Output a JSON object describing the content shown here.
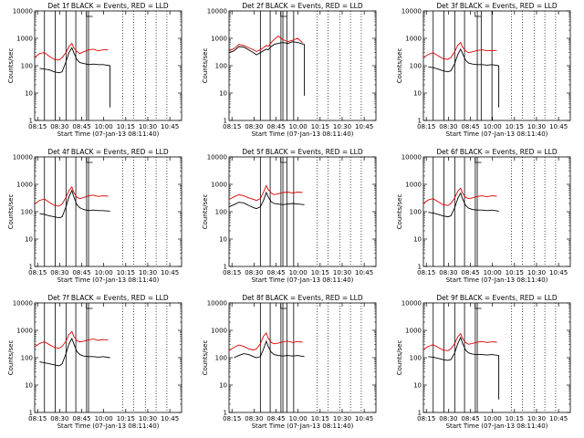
{
  "figure": {
    "xlabel": "Start Time (07-Jan-13 08:11:40)",
    "ylabel": "Counts/sec",
    "xtick_labels": [
      "08:15",
      "08:30",
      "08:45",
      "10:00",
      "10:15",
      "10:30",
      "10:45"
    ],
    "ytick_labels": [
      "1",
      "10",
      "100",
      "1000",
      "10000"
    ],
    "series_colors": {
      "events": "#000000",
      "lld": "#dd0000"
    }
  },
  "chart_data": [
    {
      "type": "line",
      "title": "Det 1f BLACK = Events, RED = LLD",
      "xlim": [
        0,
        150
      ],
      "ylim": [
        1,
        10000
      ],
      "yscale": "log",
      "solid_vlines": [
        10,
        21,
        32,
        42,
        53,
        55
      ],
      "dotted_vlines": [
        90,
        101,
        113,
        124,
        135
      ],
      "series": [
        {
          "name": "Events",
          "color": "#000000",
          "start": 5,
          "end": 77,
          "drop_to": 3,
          "x": [
            5,
            10,
            15,
            20,
            25,
            28,
            32,
            35,
            38,
            40,
            43,
            46,
            50,
            55,
            60,
            65,
            70,
            77
          ],
          "y": [
            80,
            75,
            70,
            60,
            55,
            60,
            140,
            300,
            450,
            300,
            170,
            130,
            120,
            110,
            115,
            110,
            110,
            100
          ]
        },
        {
          "name": "LLD",
          "color": "#dd0000",
          "start": 0,
          "end": 75,
          "x": [
            0,
            5,
            10,
            15,
            20,
            25,
            28,
            32,
            35,
            38,
            40,
            43,
            46,
            50,
            55,
            60,
            65,
            70,
            75
          ],
          "y": [
            200,
            280,
            300,
            220,
            170,
            160,
            200,
            300,
            500,
            650,
            450,
            330,
            280,
            320,
            380,
            400,
            350,
            380,
            380
          ]
        }
      ]
    },
    {
      "type": "line",
      "title": "Det 2f BLACK = Events, RED = LLD",
      "xlim": [
        0,
        150
      ],
      "ylim": [
        1,
        10000
      ],
      "yscale": "log",
      "solid_vlines": [
        32,
        42,
        53,
        55,
        59,
        66
      ],
      "dotted_vlines": [
        90,
        101,
        113,
        124,
        135
      ],
      "series": [
        {
          "name": "Events",
          "color": "#000000",
          "start": 0,
          "end": 77,
          "drop_to": 8,
          "x": [
            0,
            5,
            10,
            15,
            20,
            25,
            28,
            32,
            35,
            38,
            40,
            43,
            46,
            50,
            55,
            60,
            65,
            70,
            77
          ],
          "y": [
            300,
            350,
            500,
            480,
            380,
            300,
            250,
            300,
            350,
            400,
            380,
            500,
            600,
            650,
            700,
            650,
            750,
            700,
            600
          ]
        },
        {
          "name": "LLD",
          "color": "#dd0000",
          "start": 0,
          "end": 75,
          "x": [
            0,
            5,
            10,
            15,
            20,
            25,
            28,
            32,
            35,
            38,
            40,
            43,
            46,
            50,
            55,
            60,
            65,
            70,
            75
          ],
          "y": [
            350,
            420,
            600,
            550,
            450,
            380,
            330,
            380,
            450,
            550,
            500,
            700,
            900,
            1200,
            900,
            750,
            850,
            1000,
            700
          ]
        }
      ]
    },
    {
      "type": "line",
      "title": "Det 3f BLACK = Events, RED = LLD",
      "xlim": [
        0,
        150
      ],
      "ylim": [
        1,
        10000
      ],
      "yscale": "log",
      "solid_vlines": [
        10,
        21,
        32,
        42,
        55,
        59,
        70
      ],
      "dotted_vlines": [
        90,
        101,
        113,
        124,
        135
      ],
      "series": [
        {
          "name": "Events",
          "color": "#000000",
          "start": 5,
          "end": 77,
          "drop_to": 3,
          "x": [
            5,
            10,
            15,
            20,
            25,
            28,
            32,
            35,
            38,
            40,
            43,
            46,
            50,
            55,
            60,
            65,
            70,
            77
          ],
          "y": [
            90,
            85,
            75,
            65,
            60,
            65,
            120,
            250,
            400,
            280,
            160,
            125,
            115,
            110,
            110,
            105,
            110,
            100
          ]
        },
        {
          "name": "LLD",
          "color": "#dd0000",
          "start": 0,
          "end": 75,
          "x": [
            0,
            5,
            10,
            15,
            20,
            25,
            28,
            32,
            35,
            38,
            40,
            43,
            46,
            50,
            55,
            60,
            65,
            70,
            75
          ],
          "y": [
            200,
            260,
            300,
            230,
            180,
            170,
            200,
            320,
            550,
            700,
            480,
            350,
            300,
            320,
            360,
            380,
            350,
            360,
            360
          ]
        }
      ]
    },
    {
      "type": "line",
      "title": "Det 4f BLACK = Events, RED = LLD",
      "xlim": [
        0,
        150
      ],
      "ylim": [
        1,
        10000
      ],
      "yscale": "log",
      "solid_vlines": [
        10,
        21,
        32,
        42,
        53,
        55
      ],
      "dotted_vlines": [
        90,
        101,
        113,
        124,
        135
      ],
      "series": [
        {
          "name": "Events",
          "color": "#000000",
          "start": 5,
          "end": 77,
          "x": [
            5,
            10,
            15,
            20,
            25,
            28,
            32,
            35,
            38,
            40,
            43,
            46,
            50,
            55,
            60,
            65,
            70,
            77
          ],
          "y": [
            85,
            80,
            70,
            65,
            60,
            65,
            150,
            350,
            600,
            350,
            180,
            140,
            120,
            110,
            115,
            110,
            110,
            105
          ]
        },
        {
          "name": "LLD",
          "color": "#dd0000",
          "start": 0,
          "end": 75,
          "x": [
            0,
            5,
            10,
            15,
            20,
            25,
            28,
            32,
            35,
            38,
            40,
            43,
            46,
            50,
            55,
            60,
            65,
            70,
            75
          ],
          "y": [
            190,
            260,
            290,
            220,
            170,
            160,
            190,
            330,
            600,
            800,
            500,
            340,
            300,
            330,
            380,
            400,
            360,
            380,
            370
          ]
        }
      ]
    },
    {
      "type": "line",
      "title": "Det 5f BLACK = Events, RED = LLD",
      "xlim": [
        0,
        150
      ],
      "ylim": [
        1,
        10000
      ],
      "yscale": "log",
      "solid_vlines": [
        32,
        42,
        53,
        55,
        59,
        66
      ],
      "dotted_vlines": [
        90,
        101,
        113,
        124,
        135
      ],
      "series": [
        {
          "name": "Events",
          "color": "#000000",
          "start": 0,
          "end": 77,
          "x": [
            0,
            5,
            10,
            15,
            20,
            25,
            28,
            32,
            35,
            38,
            40,
            43,
            46,
            50,
            55,
            60,
            65,
            70,
            77
          ],
          "y": [
            150,
            180,
            220,
            210,
            170,
            140,
            130,
            150,
            250,
            500,
            350,
            230,
            200,
            190,
            180,
            190,
            200,
            190,
            180
          ]
        },
        {
          "name": "LLD",
          "color": "#dd0000",
          "start": 0,
          "end": 75,
          "x": [
            0,
            5,
            10,
            15,
            20,
            25,
            28,
            32,
            35,
            38,
            40,
            43,
            46,
            50,
            55,
            60,
            65,
            70,
            75
          ],
          "y": [
            280,
            350,
            420,
            380,
            320,
            280,
            260,
            300,
            500,
            900,
            650,
            480,
            420,
            450,
            500,
            520,
            480,
            520,
            500
          ]
        }
      ]
    },
    {
      "type": "line",
      "title": "Det 6f BLACK = Events, RED = LLD",
      "xlim": [
        0,
        150
      ],
      "ylim": [
        1,
        10000
      ],
      "yscale": "log",
      "solid_vlines": [
        10,
        21,
        32,
        42,
        53,
        55
      ],
      "dotted_vlines": [
        90,
        101,
        113,
        124,
        135
      ],
      "series": [
        {
          "name": "Events",
          "color": "#000000",
          "start": 5,
          "end": 77,
          "x": [
            5,
            10,
            15,
            20,
            25,
            28,
            32,
            35,
            38,
            40,
            43,
            46,
            50,
            55,
            60,
            65,
            70,
            77
          ],
          "y": [
            95,
            90,
            80,
            70,
            65,
            70,
            140,
            300,
            480,
            300,
            170,
            135,
            120,
            115,
            115,
            110,
            115,
            105
          ]
        },
        {
          "name": "LLD",
          "color": "#dd0000",
          "start": 0,
          "end": 75,
          "x": [
            0,
            5,
            10,
            15,
            20,
            25,
            28,
            32,
            35,
            38,
            40,
            43,
            46,
            50,
            55,
            60,
            65,
            70,
            75
          ],
          "y": [
            200,
            270,
            300,
            230,
            180,
            170,
            200,
            320,
            560,
            720,
            480,
            340,
            300,
            320,
            360,
            380,
            350,
            380,
            370
          ]
        }
      ]
    },
    {
      "type": "line",
      "title": "Det 7f BLACK = Events, RED = LLD",
      "xlim": [
        0,
        150
      ],
      "ylim": [
        1,
        10000
      ],
      "yscale": "log",
      "solid_vlines": [
        10,
        21,
        32,
        42,
        53,
        55
      ],
      "dotted_vlines": [
        90,
        101,
        113,
        124,
        135
      ],
      "series": [
        {
          "name": "Events",
          "color": "#000000",
          "start": 5,
          "end": 77,
          "x": [
            5,
            10,
            15,
            20,
            25,
            28,
            32,
            35,
            38,
            40,
            43,
            46,
            50,
            55,
            60,
            65,
            70,
            77
          ],
          "y": [
            70,
            65,
            60,
            55,
            50,
            60,
            140,
            320,
            500,
            320,
            170,
            130,
            115,
            110,
            110,
            105,
            110,
            100
          ]
        },
        {
          "name": "LLD",
          "color": "#dd0000",
          "start": 0,
          "end": 75,
          "x": [
            0,
            5,
            10,
            15,
            20,
            25,
            28,
            32,
            35,
            38,
            40,
            43,
            46,
            50,
            55,
            60,
            65,
            70,
            75
          ],
          "y": [
            250,
            330,
            380,
            300,
            240,
            220,
            260,
            400,
            700,
            900,
            600,
            420,
            380,
            400,
            450,
            480,
            430,
            460,
            440
          ]
        }
      ]
    },
    {
      "type": "line",
      "title": "Det 8f BLACK = Events, RED = LLD",
      "xlim": [
        0,
        150
      ],
      "ylim": [
        1,
        10000
      ],
      "yscale": "log",
      "solid_vlines": [
        32,
        42,
        53,
        55,
        59,
        66
      ],
      "dotted_vlines": [
        90,
        101,
        113,
        124,
        135
      ],
      "series": [
        {
          "name": "Events",
          "color": "#000000",
          "start": 5,
          "end": 77,
          "x": [
            5,
            10,
            15,
            20,
            25,
            28,
            32,
            35,
            38,
            40,
            43,
            46,
            50,
            55,
            60,
            65,
            70,
            77
          ],
          "y": [
            100,
            120,
            140,
            130,
            110,
            100,
            110,
            200,
            400,
            260,
            160,
            130,
            120,
            115,
            120,
            115,
            120,
            110
          ]
        },
        {
          "name": "LLD",
          "color": "#dd0000",
          "start": 0,
          "end": 75,
          "x": [
            0,
            5,
            10,
            15,
            20,
            25,
            28,
            32,
            35,
            38,
            40,
            43,
            46,
            50,
            55,
            60,
            65,
            70,
            75
          ],
          "y": [
            180,
            240,
            290,
            260,
            210,
            190,
            210,
            320,
            600,
            800,
            520,
            360,
            320,
            340,
            380,
            400,
            360,
            390,
            370
          ]
        }
      ]
    },
    {
      "type": "line",
      "title": "Det 9f BLACK = Events, RED = LLD",
      "xlim": [
        0,
        150
      ],
      "ylim": [
        1,
        10000
      ],
      "yscale": "log",
      "solid_vlines": [
        10,
        21,
        32,
        42,
        53,
        55
      ],
      "dotted_vlines": [
        90,
        101,
        113,
        124,
        135
      ],
      "series": [
        {
          "name": "Events",
          "color": "#000000",
          "start": 5,
          "end": 77,
          "drop_to": 3,
          "x": [
            5,
            10,
            15,
            20,
            25,
            28,
            32,
            35,
            38,
            40,
            43,
            46,
            50,
            55,
            60,
            65,
            70,
            77
          ],
          "y": [
            110,
            105,
            95,
            85,
            80,
            85,
            150,
            320,
            550,
            340,
            190,
            150,
            135,
            130,
            130,
            125,
            130,
            120
          ]
        },
        {
          "name": "LLD",
          "color": "#dd0000",
          "start": 0,
          "end": 75,
          "x": [
            0,
            5,
            10,
            15,
            20,
            25,
            28,
            32,
            35,
            38,
            40,
            43,
            46,
            50,
            55,
            60,
            65,
            70,
            75
          ],
          "y": [
            200,
            260,
            300,
            240,
            190,
            180,
            210,
            330,
            580,
            760,
            500,
            360,
            310,
            330,
            370,
            390,
            360,
            380,
            370
          ]
        }
      ]
    }
  ]
}
